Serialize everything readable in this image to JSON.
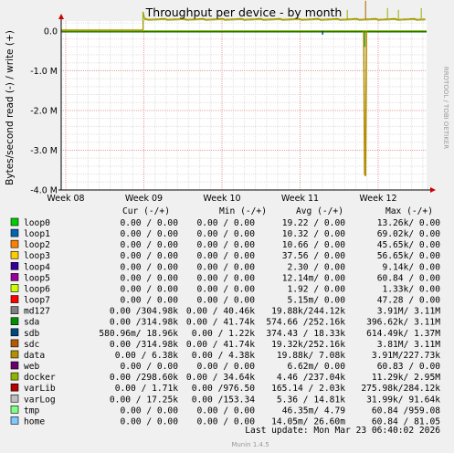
{
  "chart_data": {
    "type": "line",
    "title": "Throughput per device - by month",
    "ylabel": "Bytes/second read (-) / write (+)",
    "xlabel": "",
    "watermark": "RRDTOOL / TOBI OETIKER",
    "footer": "Munin 1.4.5",
    "grid": true,
    "x_ticks": [
      "Week 08",
      "Week 09",
      "Week 10",
      "Week 11",
      "Week 12"
    ],
    "y_ticks": [
      "0.0",
      "-1.0 M",
      "-2.0 M",
      "-3.0 M",
      "-4.0 M"
    ],
    "ylim": [
      -4000000,
      250000
    ],
    "colors": {
      "background": "#F0F0F0",
      "plot": "#FFFFFF",
      "grid_minor": "#E0E0E0",
      "grid_major": "#E8A0A0",
      "axis": "#000000",
      "arrow": "#CC0000"
    },
    "columns": [
      "Cur (-/+)",
      "Min (-/+)",
      "Avg (-/+)",
      "Max (-/+)"
    ],
    "series": [
      {
        "name": "loop0",
        "color": "#00CC00",
        "cur": "0.00 /  0.00",
        "min": "0.00 /  0.00",
        "avg": "19.22 /  0.00",
        "max": "13.26k/  0.00"
      },
      {
        "name": "loop1",
        "color": "#0066B3",
        "cur": "0.00 /  0.00",
        "min": "0.00 /  0.00",
        "avg": "10.32 /  0.00",
        "max": "69.02k/  0.00"
      },
      {
        "name": "loop2",
        "color": "#FF8000",
        "cur": "0.00 /  0.00",
        "min": "0.00 /  0.00",
        "avg": "10.66 /  0.00",
        "max": "45.65k/  0.00"
      },
      {
        "name": "loop3",
        "color": "#FFCC00",
        "cur": "0.00 /  0.00",
        "min": "0.00 /  0.00",
        "avg": "37.56 /  0.00",
        "max": "56.65k/  0.00"
      },
      {
        "name": "loop4",
        "color": "#330099",
        "cur": "0.00 /  0.00",
        "min": "0.00 /  0.00",
        "avg": "2.30 /  0.00",
        "max": "9.14k/  0.00"
      },
      {
        "name": "loop5",
        "color": "#990099",
        "cur": "0.00 /  0.00",
        "min": "0.00 /  0.00",
        "avg": "12.14m/  0.00",
        "max": "60.84 /  0.00"
      },
      {
        "name": "loop6",
        "color": "#CCFF00",
        "cur": "0.00 /  0.00",
        "min": "0.00 /  0.00",
        "avg": "1.92 /  0.00",
        "max": "1.33k/  0.00"
      },
      {
        "name": "loop7",
        "color": "#FF0000",
        "cur": "0.00 /  0.00",
        "min": "0.00 /  0.00",
        "avg": "5.15m/  0.00",
        "max": "47.28 /  0.00"
      },
      {
        "name": "md127",
        "color": "#808080",
        "cur": "0.00 /304.98k",
        "min": "0.00 / 40.46k",
        "avg": "19.88k/244.12k",
        "max": "3.91M/  3.11M"
      },
      {
        "name": "sda",
        "color": "#008F00",
        "cur": "0.00 /314.98k",
        "min": "0.00 / 41.74k",
        "avg": "574.66 /252.16k",
        "max": "396.62k/  3.11M"
      },
      {
        "name": "sdb",
        "color": "#00487D",
        "cur": "580.96m/ 18.96k",
        "min": "0.00 /  1.22k",
        "avg": "374.43 / 18.33k",
        "max": "614.49k/  1.37M"
      },
      {
        "name": "sdc",
        "color": "#B35A00",
        "cur": "0.00 /314.98k",
        "min": "0.00 / 41.74k",
        "avg": "19.32k/252.16k",
        "max": "3.81M/  3.11M"
      },
      {
        "name": "data",
        "color": "#B38F00",
        "cur": "0.00 /  6.38k",
        "min": "0.00 /  4.38k",
        "avg": "19.88k/  7.08k",
        "max": "3.91M/227.73k"
      },
      {
        "name": "web",
        "color": "#6B006B",
        "cur": "0.00 /  0.00",
        "min": "0.00 /  0.00",
        "avg": "6.62m/  0.00",
        "max": "60.83 /  0.00"
      },
      {
        "name": "docker",
        "color": "#8FB300",
        "cur": "0.00 /298.60k",
        "min": "0.00 / 34.64k",
        "avg": "4.46 /237.04k",
        "max": "11.29k/  2.95M"
      },
      {
        "name": "varLib",
        "color": "#B30000",
        "cur": "0.00 /  1.71k",
        "min": "0.00 /976.50",
        "avg": "165.14 /  2.03k",
        "max": "275.98k/284.12k"
      },
      {
        "name": "varLog",
        "color": "#BEBEBE",
        "cur": "0.00 / 17.25k",
        "min": "0.00 /153.34",
        "avg": "5.36 / 14.81k",
        "max": "31.99k/ 91.64k"
      },
      {
        "name": "tmp",
        "color": "#80FF80",
        "cur": "0.00 /  0.00",
        "min": "0.00 /  0.00",
        "avg": "46.35m/  4.79",
        "max": "60.84 /959.08"
      },
      {
        "name": "home",
        "color": "#80C9FF",
        "cur": "0.00 /  0.00",
        "min": "0.00 /  0.00",
        "avg": "14.05m/ 26.60m",
        "max": "60.84 / 81.05"
      }
    ],
    "last_update": "Last update:  Mon Mar 23 06:40:02 2026",
    "trace": {
      "write_baseline": 0,
      "write_level_after_week09": 300000,
      "read_spike_week12": -3600000
    }
  }
}
